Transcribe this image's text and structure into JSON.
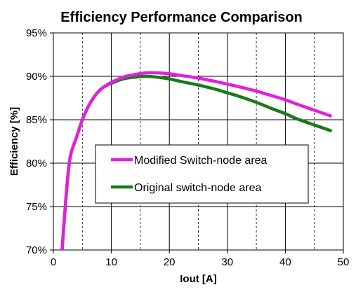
{
  "chart_data": {
    "type": "line",
    "title": "Efficiency Performance Comparison",
    "xlabel": "Iout [A]",
    "ylabel": "Efficiency [%]",
    "xlim": [
      0,
      50
    ],
    "ylim": [
      70,
      95
    ],
    "x_ticks": [
      0,
      10,
      20,
      30,
      40,
      50
    ],
    "y_ticks": [
      70,
      75,
      80,
      85,
      90,
      95
    ],
    "y_tick_labels": [
      "70%",
      "75%",
      "80%",
      "85%",
      "90%",
      "95%"
    ],
    "x_major_grid": [
      10,
      20,
      30,
      40
    ],
    "x_minor_grid": [
      5,
      15,
      25,
      35,
      45
    ],
    "y_grid": [
      75,
      80,
      85,
      90
    ],
    "legend_position": "center",
    "series": [
      {
        "name": "Modified Switch-node area",
        "color": "#e020e0",
        "x": [
          1.5,
          2,
          2.5,
          3,
          4,
          5,
          6,
          7,
          8,
          9,
          10,
          12,
          14,
          16,
          18,
          20,
          22,
          25,
          28,
          30,
          32,
          35,
          38,
          40,
          42,
          45,
          48
        ],
        "y": [
          70.0,
          74.5,
          78.5,
          81.0,
          83.0,
          85.0,
          86.5,
          87.6,
          88.4,
          88.9,
          89.3,
          89.9,
          90.2,
          90.4,
          90.4,
          90.3,
          90.1,
          89.8,
          89.4,
          89.1,
          88.8,
          88.3,
          87.7,
          87.3,
          86.8,
          86.1,
          85.4
        ]
      },
      {
        "name": "Original switch-node area",
        "color": "#1a7a1a",
        "x": [
          1.5,
          2,
          2.5,
          3,
          4,
          5,
          6,
          7,
          8,
          9,
          10,
          12,
          14,
          16,
          18,
          20,
          22,
          25,
          28,
          30,
          32,
          35,
          38,
          40,
          42,
          45,
          48
        ],
        "y": [
          70.0,
          74.5,
          78.5,
          81.0,
          83.0,
          85.0,
          86.5,
          87.6,
          88.4,
          88.9,
          89.2,
          89.7,
          89.9,
          90.0,
          89.9,
          89.7,
          89.4,
          89.0,
          88.5,
          88.1,
          87.7,
          87.0,
          86.2,
          85.7,
          85.1,
          84.4,
          83.7
        ]
      }
    ]
  }
}
